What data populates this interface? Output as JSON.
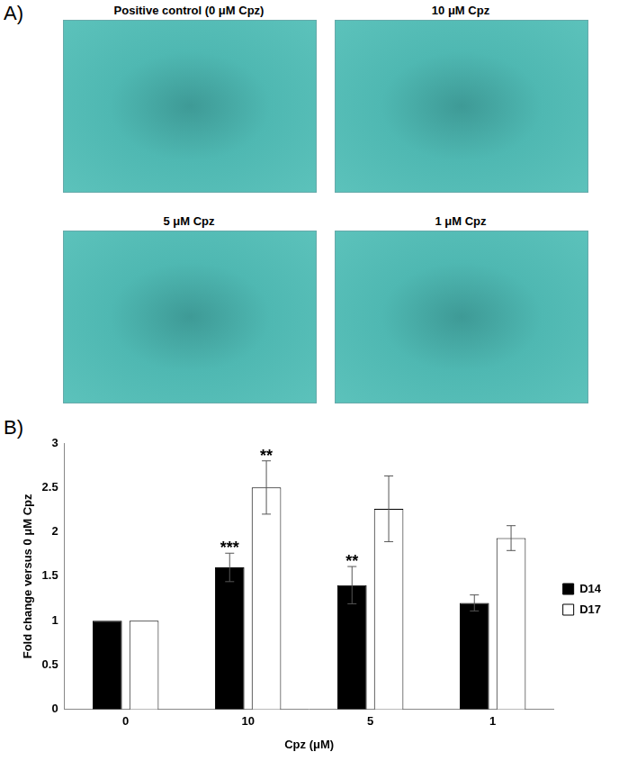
{
  "figure": {
    "panel_a": {
      "label": "A)",
      "images": [
        "Positive control (0 μM Cpz)",
        "10 μM Cpz",
        "5 μM Cpz",
        "1 μM Cpz"
      ]
    },
    "panel_b_label": "B)"
  },
  "chart_data": {
    "type": "bar",
    "x_label": "Cpz (μM)",
    "y_label": "Fold change versus 0 μM Cpz",
    "categories": [
      "0",
      "10",
      "5",
      "1"
    ],
    "series": [
      {
        "name": "D14",
        "color": "#000000",
        "values": [
          1,
          1.6,
          1.4,
          1.2
        ],
        "errors": [
          0,
          0.16,
          0.21,
          0.09
        ],
        "significance": [
          null,
          "***",
          "**",
          null
        ]
      },
      {
        "name": "D17",
        "color": "#ffffff",
        "values": [
          1,
          2.5,
          2.26,
          1.93
        ],
        "errors": [
          0,
          0.3,
          0.37,
          0.14
        ],
        "significance": [
          null,
          "**",
          null,
          null
        ]
      }
    ],
    "ylim": [
      0,
      3
    ],
    "yticks": [
      0,
      0.5,
      1,
      1.5,
      2,
      2.5,
      3
    ],
    "grid": false,
    "legend": "right"
  }
}
